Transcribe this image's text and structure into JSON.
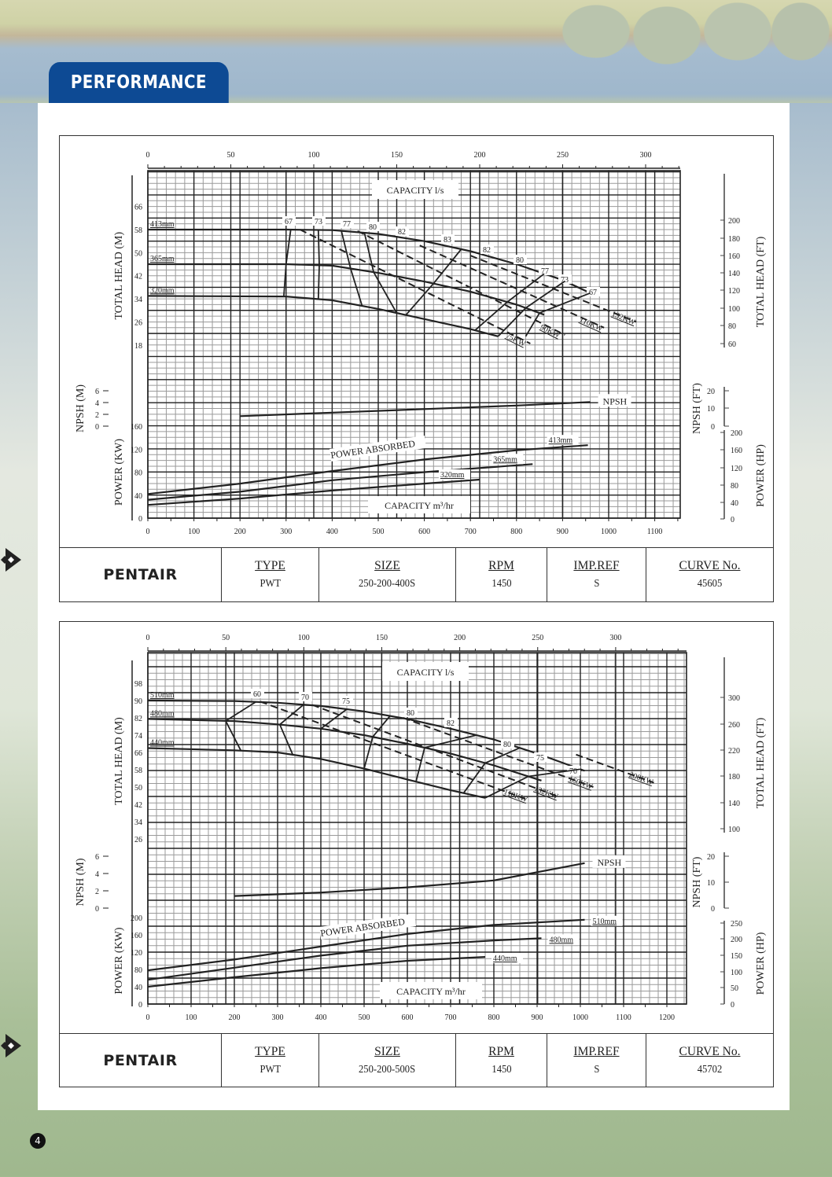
{
  "header": {
    "section_title": "PERFORMANCE",
    "page_number": "4"
  },
  "charts_meta": [
    {
      "brand": "PENTAIR",
      "info": [
        {
          "label": "TYPE",
          "value": "PWT"
        },
        {
          "label": "SIZE",
          "value": "250-200-400S"
        },
        {
          "label": "RPM",
          "value": "1450"
        },
        {
          "label": "IMP.REF",
          "value": "S"
        },
        {
          "label": "CURVE No.",
          "value": "45605"
        }
      ]
    },
    {
      "brand": "PENTAIR",
      "info": [
        {
          "label": "TYPE",
          "value": "PWT"
        },
        {
          "label": "SIZE",
          "value": "250-200-500S"
        },
        {
          "label": "RPM",
          "value": "1450"
        },
        {
          "label": "IMP.REF",
          "value": "S"
        },
        {
          "label": "CURVE No.",
          "value": "45702"
        }
      ]
    }
  ],
  "chart_data": [
    {
      "type": "line",
      "title": "PWT 250-200-400S Performance Curve",
      "top_axis": {
        "label": "CAPACITY l/s",
        "ticks": [
          0,
          50,
          100,
          150,
          200,
          250,
          300
        ],
        "range": [
          0,
          320
        ]
      },
      "bottom_axis": {
        "label": "CAPACITY m3/hr",
        "ticks": [
          0,
          100,
          200,
          300,
          400,
          500,
          600,
          700,
          800,
          900,
          1000,
          1100
        ],
        "range": [
          0,
          1155
        ]
      },
      "head_axis": {
        "label": "TOTAL HEAD (M)",
        "ticks": [
          18,
          26,
          34,
          42,
          50,
          58,
          66
        ]
      },
      "head_ft_axis": {
        "label": "TOTAL HEAD (FT)",
        "ticks": [
          60,
          80,
          100,
          120,
          140,
          160,
          180,
          200
        ]
      },
      "npsh_axis": {
        "label": "NPSH (M)",
        "ticks": [
          0,
          2,
          4,
          6
        ]
      },
      "npsh_ft_axis": {
        "label": "NPSH (FT)",
        "ticks": [
          0,
          10,
          20
        ]
      },
      "power_axis": {
        "label": "POWER (KW)",
        "ticks": [
          0,
          40,
          80,
          120,
          160
        ]
      },
      "power_hp_axis": {
        "label": "POWER (HP)",
        "ticks": [
          0,
          40,
          80,
          120,
          160,
          200
        ]
      },
      "head_curves": [
        {
          "name": "413mm",
          "points": [
            [
              0,
              58
            ],
            [
              300,
              58
            ],
            [
              400,
              57.8
            ],
            [
              500,
              56.5
            ],
            [
              600,
              54
            ],
            [
              700,
              50.5
            ],
            [
              800,
              46
            ],
            [
              900,
              40.5
            ],
            [
              960,
              36
            ]
          ]
        },
        {
          "name": "365mm",
          "points": [
            [
              0,
              46
            ],
            [
              300,
              46
            ],
            [
              400,
              45.5
            ],
            [
              500,
              43
            ],
            [
              600,
              40
            ],
            [
              700,
              36.5
            ],
            [
              800,
              32
            ],
            [
              860,
              28.5
            ]
          ]
        },
        {
          "name": "320mm",
          "points": [
            [
              0,
              35
            ],
            [
              300,
              34.8
            ],
            [
              400,
              33.5
            ],
            [
              500,
              30.5
            ],
            [
              600,
              27
            ],
            [
              700,
              23.5
            ],
            [
              760,
              21
            ]
          ]
        }
      ],
      "efficiency_labels": [
        "67",
        "73",
        "77",
        "80",
        "82",
        "83",
        "82",
        "80",
        "77",
        "73",
        "67"
      ],
      "power_lines": [
        {
          "name": "75KW",
          "points": [
            [
              330,
              58
            ],
            [
              830,
              18.5
            ]
          ]
        },
        {
          "name": "90KW",
          "points": [
            [
              455,
              57.5
            ],
            [
              905,
              21.5
            ]
          ]
        },
        {
          "name": "110KW",
          "points": [
            [
              590,
              52.5
            ],
            [
              990,
              24
            ]
          ]
        },
        {
          "name": "132KW",
          "points": [
            [
              700,
              49
            ],
            [
              1060,
              26
            ]
          ]
        }
      ],
      "npsh": {
        "name": "NPSH",
        "points": [
          [
            200,
            1.7
          ],
          [
            400,
            2.3
          ],
          [
            600,
            2.9
          ],
          [
            800,
            3.5
          ],
          [
            960,
            4.1
          ]
        ]
      },
      "power_curves": [
        {
          "name": "413mm",
          "points": [
            [
              0,
              42
            ],
            [
              200,
              60
            ],
            [
              400,
              82
            ],
            [
              600,
              102
            ],
            [
              800,
              118
            ],
            [
              955,
              127
            ]
          ]
        },
        {
          "name": "365mm",
          "points": [
            [
              0,
              32
            ],
            [
              200,
              46
            ],
            [
              400,
              66
            ],
            [
              600,
              80
            ],
            [
              835,
              94
            ]
          ]
        },
        {
          "name": "320mm",
          "points": [
            [
              0,
              23
            ],
            [
              200,
              34
            ],
            [
              400,
              48
            ],
            [
              600,
              60
            ],
            [
              720,
              67
            ]
          ]
        }
      ],
      "annotations": [
        "POWER ABSORBED",
        "NPSH"
      ]
    },
    {
      "type": "line",
      "title": "PWT 250-200-500S Performance Curve",
      "top_axis": {
        "label": "CAPACITY l/s",
        "ticks": [
          0,
          50,
          100,
          150,
          200,
          250,
          300
        ],
        "range": [
          0,
          345
        ]
      },
      "bottom_axis": {
        "label": "CAPACITY m3/hr",
        "ticks": [
          0,
          100,
          200,
          300,
          400,
          500,
          600,
          700,
          800,
          900,
          1000,
          1100,
          1200
        ],
        "range": [
          0,
          1245
        ]
      },
      "head_axis": {
        "label": "TOTAL HEAD (M)",
        "ticks": [
          26,
          34,
          42,
          50,
          58,
          66,
          74,
          82,
          90,
          98
        ]
      },
      "head_ft_axis": {
        "label": "TOTAL HEAD (FT)",
        "ticks": [
          100,
          140,
          180,
          220,
          260,
          300
        ]
      },
      "npsh_axis": {
        "label": "NPSH (M)",
        "ticks": [
          0,
          2,
          4,
          6
        ]
      },
      "npsh_ft_axis": {
        "label": "NPSH (FT)",
        "ticks": [
          0,
          10,
          20
        ]
      },
      "power_axis": {
        "label": "POWER (KW)",
        "ticks": [
          0,
          40,
          80,
          120,
          160,
          200
        ]
      },
      "power_hp_axis": {
        "label": "POWER (HP)",
        "ticks": [
          0,
          50,
          100,
          150,
          200,
          250
        ]
      },
      "head_curves": [
        {
          "name": "510mm",
          "points": [
            [
              0,
              90
            ],
            [
              200,
              89.8
            ],
            [
              300,
              89
            ],
            [
              400,
              87.5
            ],
            [
              500,
              85
            ],
            [
              600,
              81.5
            ],
            [
              700,
              77
            ],
            [
              800,
              72
            ],
            [
              900,
              65.5
            ],
            [
              1010,
              57.5
            ]
          ]
        },
        {
          "name": "480mm",
          "points": [
            [
              0,
              81.5
            ],
            [
              200,
              80.5
            ],
            [
              300,
              79
            ],
            [
              400,
              77
            ],
            [
              500,
              74
            ],
            [
              600,
              70
            ],
            [
              700,
              65.5
            ],
            [
              800,
              60
            ],
            [
              910,
              53
            ]
          ]
        },
        {
          "name": "440mm",
          "points": [
            [
              0,
              68
            ],
            [
              200,
              67
            ],
            [
              300,
              66
            ],
            [
              400,
              63
            ],
            [
              500,
              58.5
            ],
            [
              600,
              53.5
            ],
            [
              700,
              48.5
            ],
            [
              780,
              45
            ]
          ]
        }
      ],
      "efficiency_labels": [
        "60",
        "70",
        "75",
        "80",
        "82",
        "80",
        "75",
        "70"
      ],
      "power_lines": [
        {
          "name": "110KW",
          "points": [
            [
              260,
              89.5
            ],
            [
              880,
              44
            ]
          ]
        },
        {
          "name": "132KW",
          "points": [
            [
              380,
              88
            ],
            [
              950,
              45.5
            ]
          ]
        },
        {
          "name": "160KW",
          "points": [
            [
              590,
              82
            ],
            [
              1030,
              50
            ]
          ]
        },
        {
          "name": "200KW",
          "points": [
            [
              990,
              65
            ],
            [
              1170,
              52
            ]
          ]
        }
      ],
      "npsh": {
        "name": "NPSH",
        "points": [
          [
            200,
            1.4
          ],
          [
            400,
            1.8
          ],
          [
            600,
            2.4
          ],
          [
            800,
            3.2
          ],
          [
            1010,
            5.2
          ]
        ]
      },
      "power_curves": [
        {
          "name": "510mm",
          "points": [
            [
              0,
              78
            ],
            [
              200,
              103
            ],
            [
              400,
              133
            ],
            [
              600,
              162
            ],
            [
              800,
              183
            ],
            [
              1010,
              195
            ]
          ]
        },
        {
          "name": "480mm",
          "points": [
            [
              0,
              56
            ],
            [
              200,
              84
            ],
            [
              400,
              112
            ],
            [
              600,
              135
            ],
            [
              800,
              147
            ],
            [
              910,
              152
            ]
          ]
        },
        {
          "name": "440mm",
          "points": [
            [
              0,
              40
            ],
            [
              200,
              62
            ],
            [
              400,
              83
            ],
            [
              600,
              100
            ],
            [
              780,
              109
            ]
          ]
        }
      ],
      "annotations": [
        "POWER ABSORBED",
        "NPSH"
      ]
    }
  ]
}
